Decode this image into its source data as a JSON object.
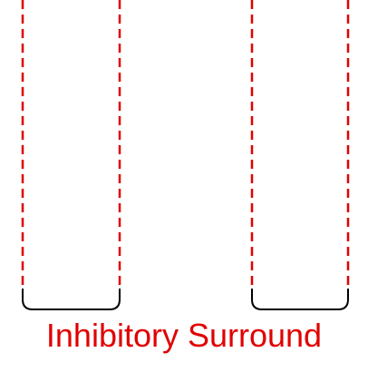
{
  "caption": "Inhibitory Surround",
  "colors": {
    "dashed_line": "#e00000",
    "cup": "#000000",
    "caption": "#e00000"
  }
}
